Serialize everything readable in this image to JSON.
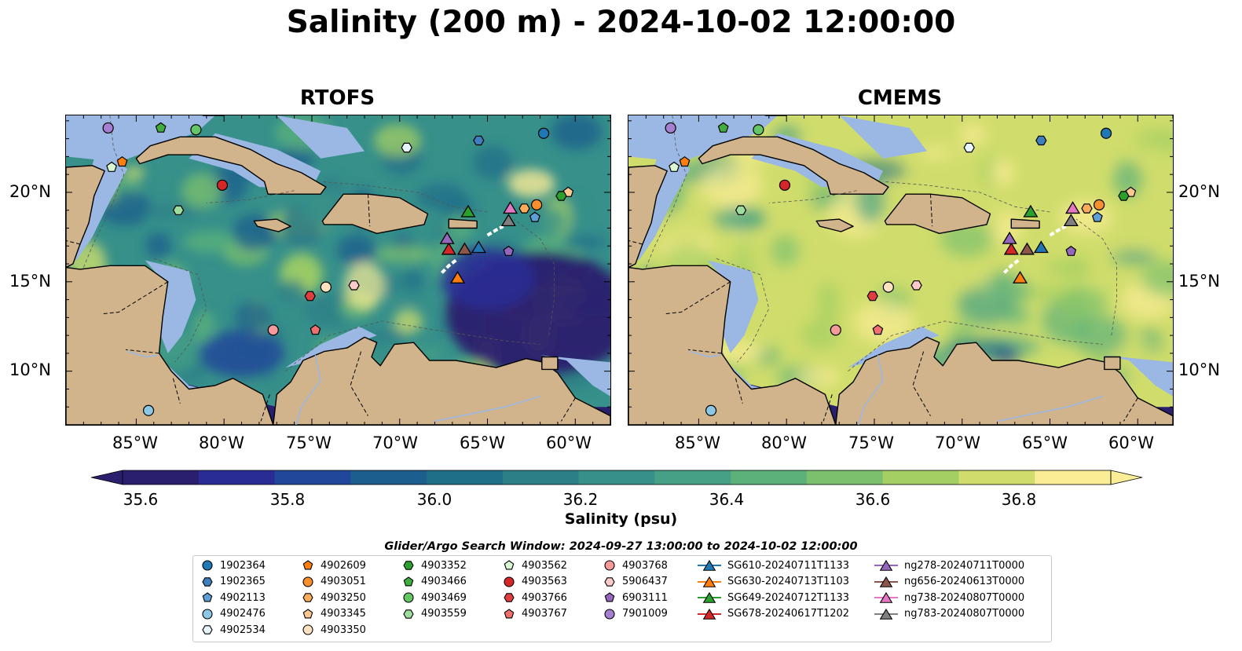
{
  "title": "Salinity (200 m) - 2024-10-02 12:00:00",
  "panels": [
    {
      "title": "RTOFS",
      "scheme": "rtofs"
    },
    {
      "title": "CMEMS",
      "scheme": "cmems"
    }
  ],
  "axes": {
    "lat_labels": [
      "20°N",
      "15°N",
      "10°N"
    ],
    "lon_labels": [
      "85°W",
      "80°W",
      "75°W",
      "70°W",
      "65°W",
      "60°W"
    ]
  },
  "colorbar": {
    "label": "Salinity (psu)",
    "min": 35.6,
    "max": 36.9,
    "ticks": [
      "35.6",
      "35.8",
      "36.0",
      "36.2",
      "36.4",
      "36.6",
      "36.8"
    ],
    "colors": [
      "#2a1e6e",
      "#2a2c95",
      "#21479a",
      "#1c5e8e",
      "#1f6f89",
      "#2c7f87",
      "#37908a",
      "#45a085",
      "#5cb17b",
      "#7cc06d",
      "#a4cf63",
      "#d0dd6c",
      "#fbec96"
    ]
  },
  "search_window": "Glider/Argo Search Window: 2024-09-27 13:00:00 to 2024-10-02 12:00:00",
  "legend": {
    "columns": [
      [
        {
          "label": "1902364",
          "marker": "circle",
          "color": "#1f77b4"
        },
        {
          "label": "1902365",
          "marker": "hexagon",
          "color": "#3f7fbf"
        },
        {
          "label": "4902113",
          "marker": "pentagon",
          "color": "#5d9fd6"
        },
        {
          "label": "4902476",
          "marker": "circle",
          "color": "#8cc8e6"
        },
        {
          "label": "4902534",
          "marker": "hexagon",
          "color": "#e8f4fb"
        }
      ],
      [
        {
          "label": "4902609",
          "marker": "pentagon",
          "color": "#ff7f0e"
        },
        {
          "label": "4903051",
          "marker": "circle",
          "color": "#f7902c"
        },
        {
          "label": "4903250",
          "marker": "hexagon",
          "color": "#fbac5a"
        },
        {
          "label": "4903345",
          "marker": "pentagon",
          "color": "#fdc990"
        },
        {
          "label": "4903350",
          "marker": "circle",
          "color": "#fee2c0"
        }
      ],
      [
        {
          "label": "4903352",
          "marker": "hexagon",
          "color": "#2ca02c"
        },
        {
          "label": "4903466",
          "marker": "pentagon",
          "color": "#3fae3f"
        },
        {
          "label": "4903469",
          "marker": "circle",
          "color": "#64c664"
        },
        {
          "label": "4903559",
          "marker": "hexagon",
          "color": "#9fdd9f"
        }
      ],
      [
        {
          "label": "4903562",
          "marker": "pentagon",
          "color": "#d9f7d2"
        },
        {
          "label": "4903563",
          "marker": "circle",
          "color": "#d62728"
        },
        {
          "label": "4903766",
          "marker": "hexagon",
          "color": "#e03e3e"
        },
        {
          "label": "4903767",
          "marker": "pentagon",
          "color": "#f07070"
        }
      ],
      [
        {
          "label": "4903768",
          "marker": "circle",
          "color": "#f49a9a"
        },
        {
          "label": "5906437",
          "marker": "hexagon",
          "color": "#fbcaca"
        },
        {
          "label": "6903111",
          "marker": "pentagon",
          "color": "#9467bd"
        },
        {
          "label": "7901009",
          "marker": "circle",
          "color": "#a77fd0"
        }
      ],
      [
        {
          "label": "SG610-20240711T1133",
          "marker": "triangle-line",
          "color": "#1f77b4"
        },
        {
          "label": "SG630-20240713T1103",
          "marker": "triangle-line",
          "color": "#ff7f0e"
        },
        {
          "label": "SG649-20240712T1133",
          "marker": "triangle-line",
          "color": "#2ca02c"
        },
        {
          "label": "SG678-20240617T1202",
          "marker": "triangle-line",
          "color": "#d62728"
        }
      ],
      [
        {
          "label": "ng278-20240711T0000",
          "marker": "triangle-line",
          "color": "#9467bd"
        },
        {
          "label": "ng656-20240613T0000",
          "marker": "triangle-line",
          "color": "#8c564b"
        },
        {
          "label": "ng738-20240807T0000",
          "marker": "triangle-line",
          "color": "#e377c2"
        },
        {
          "label": "ng783-20240807T0000",
          "marker": "triangle-line",
          "color": "#7f7f7f"
        }
      ]
    ]
  }
}
